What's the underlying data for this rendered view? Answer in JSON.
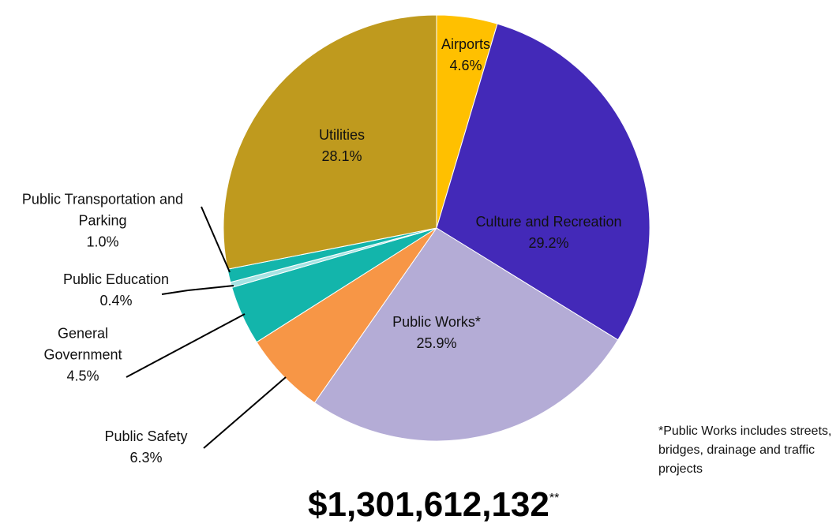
{
  "chart_data": {
    "type": "pie",
    "categories": [
      "Airports",
      "Culture and Recreation",
      "Public Works*",
      "Public Safety",
      "General Government",
      "Public Education",
      "Public Transportation and Parking",
      "Utilities"
    ],
    "values": [
      4.6,
      29.2,
      25.9,
      6.3,
      4.5,
      0.4,
      1.0,
      28.1
    ],
    "value_labels": [
      "4.6%",
      "29.2%",
      "25.9%",
      "6.3%",
      "4.5%",
      "0.4%",
      "1.0%",
      "28.1%"
    ],
    "colors": [
      "#FFC000",
      "#4329B8",
      "#B4ACD6",
      "#F79646",
      "#13B5AB",
      "#A6E3E3",
      "#13B5AB",
      "#BF9A1E"
    ],
    "total": "$1,301,612,132",
    "total_marker": "**",
    "footnote": "*Public Works includes streets, bridges, drainage and traffic projects"
  }
}
